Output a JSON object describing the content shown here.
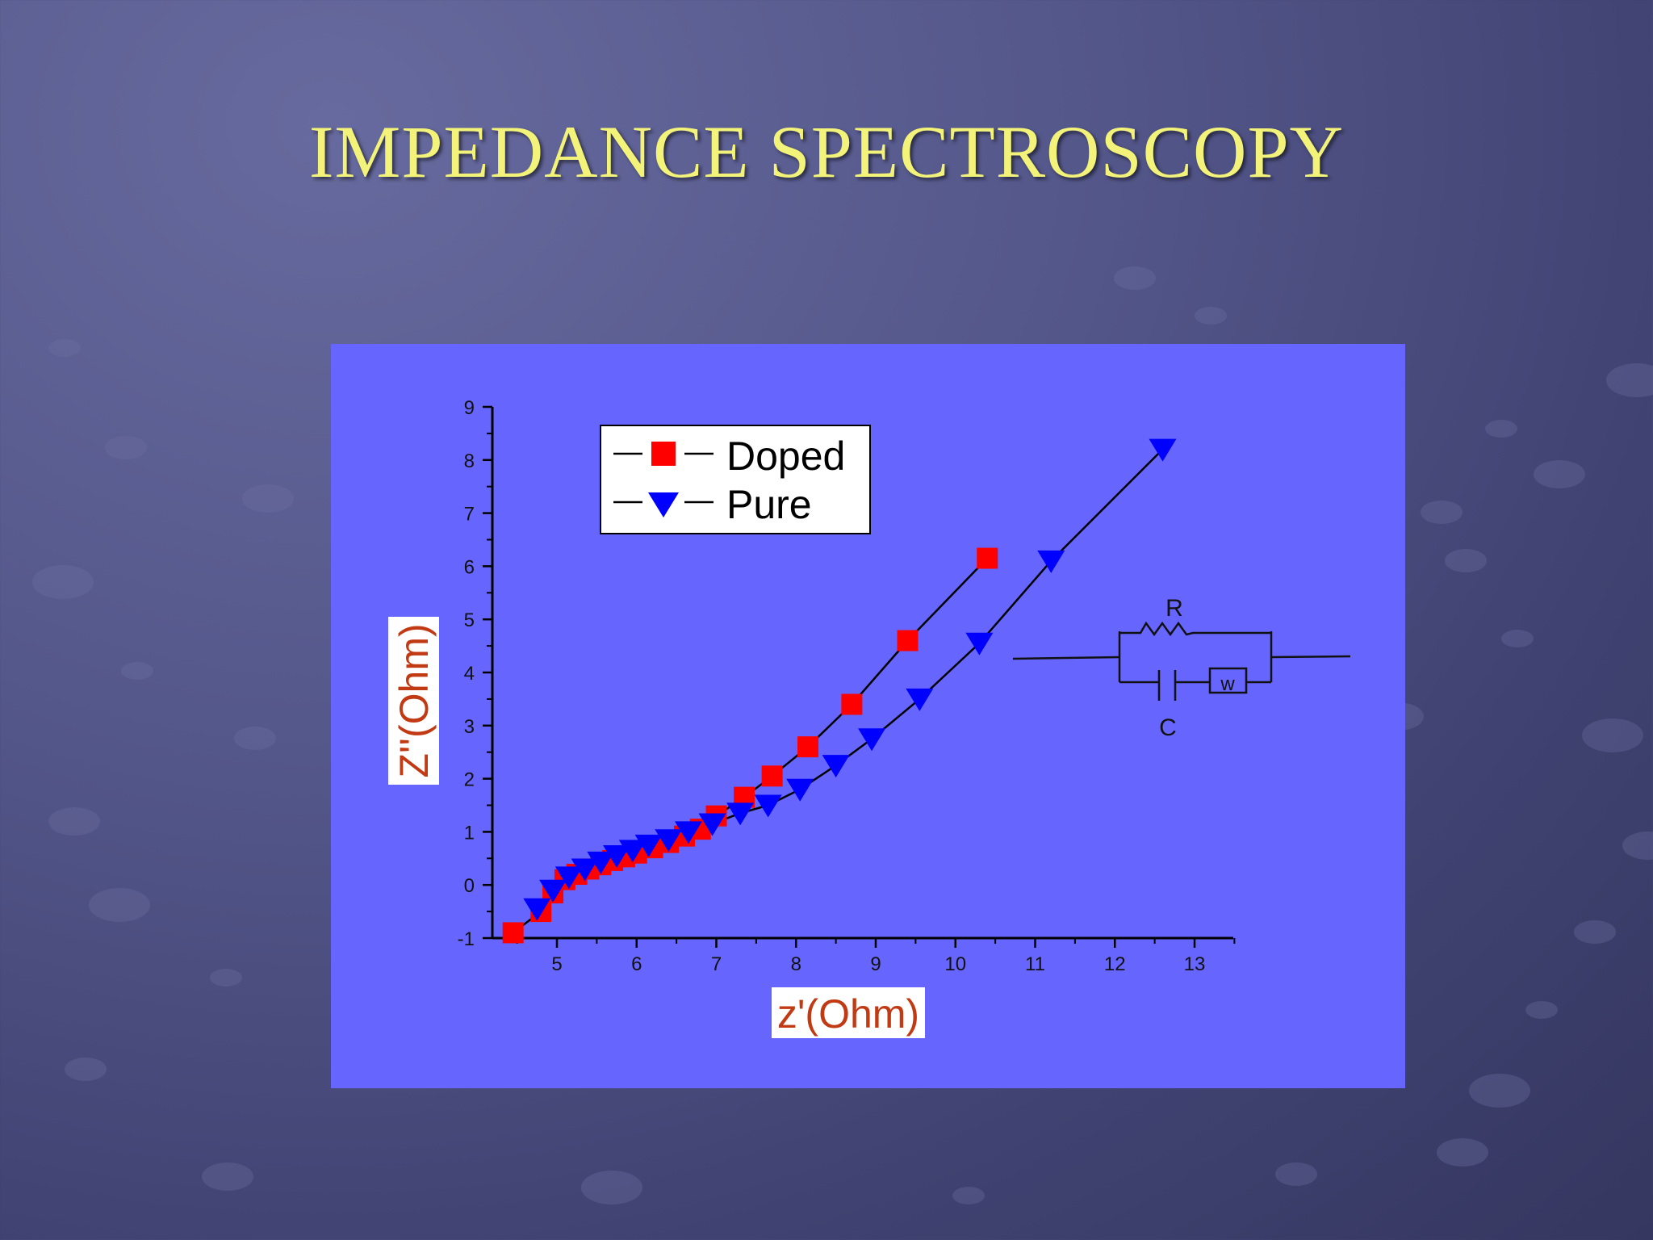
{
  "slide": {
    "title": "IMPEDANCE SPECTROSCOPY"
  },
  "chart_data": {
    "type": "scatter",
    "xlabel": "z'(Ohm)",
    "ylabel": "Z''(Ohm)",
    "xlim": [
      4.3,
      13.5
    ],
    "ylim": [
      -1,
      9
    ],
    "x_ticks": [
      5,
      6,
      7,
      8,
      9,
      10,
      11,
      12,
      13
    ],
    "y_ticks": [
      -1,
      0,
      1,
      2,
      3,
      4,
      5,
      6,
      7,
      8,
      9
    ],
    "grid": false,
    "legend_position": "top-left",
    "series": [
      {
        "name": "Doped",
        "marker": "square",
        "color": "#ff0000",
        "x": [
          4.45,
          4.8,
          4.95,
          5.1,
          5.25,
          5.4,
          5.55,
          5.7,
          5.85,
          6.0,
          6.2,
          6.4,
          6.6,
          6.8,
          7.0,
          7.35,
          7.7,
          8.15,
          8.7,
          9.4,
          10.4
        ],
        "y": [
          -0.9,
          -0.5,
          -0.15,
          0.1,
          0.2,
          0.3,
          0.38,
          0.46,
          0.53,
          0.6,
          0.7,
          0.8,
          0.92,
          1.05,
          1.3,
          1.65,
          2.05,
          2.6,
          3.4,
          4.6,
          6.15
        ]
      },
      {
        "name": "Pure",
        "marker": "triangle-down",
        "color": "#0000ff",
        "x": [
          4.75,
          4.95,
          5.15,
          5.35,
          5.55,
          5.75,
          5.95,
          6.15,
          6.4,
          6.65,
          6.95,
          7.3,
          7.65,
          8.05,
          8.5,
          8.95,
          9.55,
          10.3,
          11.2,
          12.6
        ],
        "y": [
          -0.45,
          -0.1,
          0.15,
          0.3,
          0.43,
          0.55,
          0.65,
          0.75,
          0.85,
          1.0,
          1.15,
          1.35,
          1.5,
          1.8,
          2.25,
          2.75,
          3.5,
          4.55,
          6.1,
          8.2
        ]
      }
    ],
    "annotations": {
      "circuit": {
        "resistor_label": "R",
        "capacitor_label": "C",
        "warburg_label": "w"
      }
    }
  }
}
